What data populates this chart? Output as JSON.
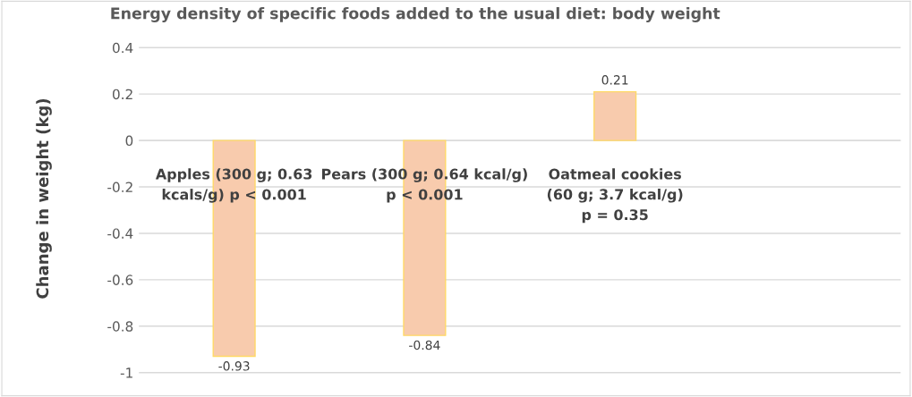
{
  "chart_data": {
    "type": "bar",
    "title": "Energy density of specific foods added to the usual diet: body weight",
    "ylabel": "Change in weight (kg)",
    "categories": [
      "Apples (300 g; 0.63\nkcals/g) p < 0.001",
      "Pears (300 g; 0.64 kcal/g)\np < 0.001",
      "Oatmeal cookies\n(60 g; 3.7 kcal/g)\np = 0.35"
    ],
    "values": [
      -0.93,
      -0.84,
      0.21
    ],
    "color": "#f8cbad",
    "ylim": [
      -1.1,
      0.6
    ],
    "yticks": [
      -1,
      -0.8,
      -0.6,
      -0.4,
      -0.2,
      0,
      0.2,
      0.4
    ],
    "grid": "y",
    "data_labels": true
  }
}
